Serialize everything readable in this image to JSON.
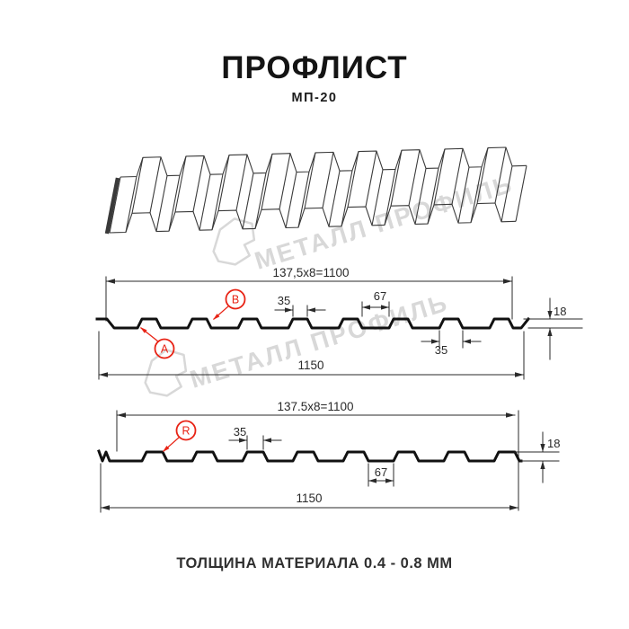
{
  "title": "ПРОФЛИСТ",
  "subtitle": "МП-20",
  "footer_note": "ТОЛЩИНА МАТЕРИАЛА 0.4 - 0.8 ММ",
  "watermark": {
    "brand": "МЕТАЛЛ ПРОФИЛЬ"
  },
  "colors": {
    "line": "#1c1c1c",
    "accent_red": "#e82315",
    "watermark": "#d8d8d8"
  },
  "diagrams": {
    "upper": {
      "module_width": "137,5x8=1100",
      "overall_width": "1150",
      "rib_top_width": "35",
      "valley_width": "67",
      "profile_height": "18",
      "rib_bottom_width": "35",
      "label_a": "A",
      "label_b": "B"
    },
    "lower": {
      "module_width": "137.5x8=1100",
      "overall_width": "1150",
      "rib_top_width": "35",
      "valley_width": "67",
      "profile_height": "18",
      "label_r": "R"
    }
  }
}
